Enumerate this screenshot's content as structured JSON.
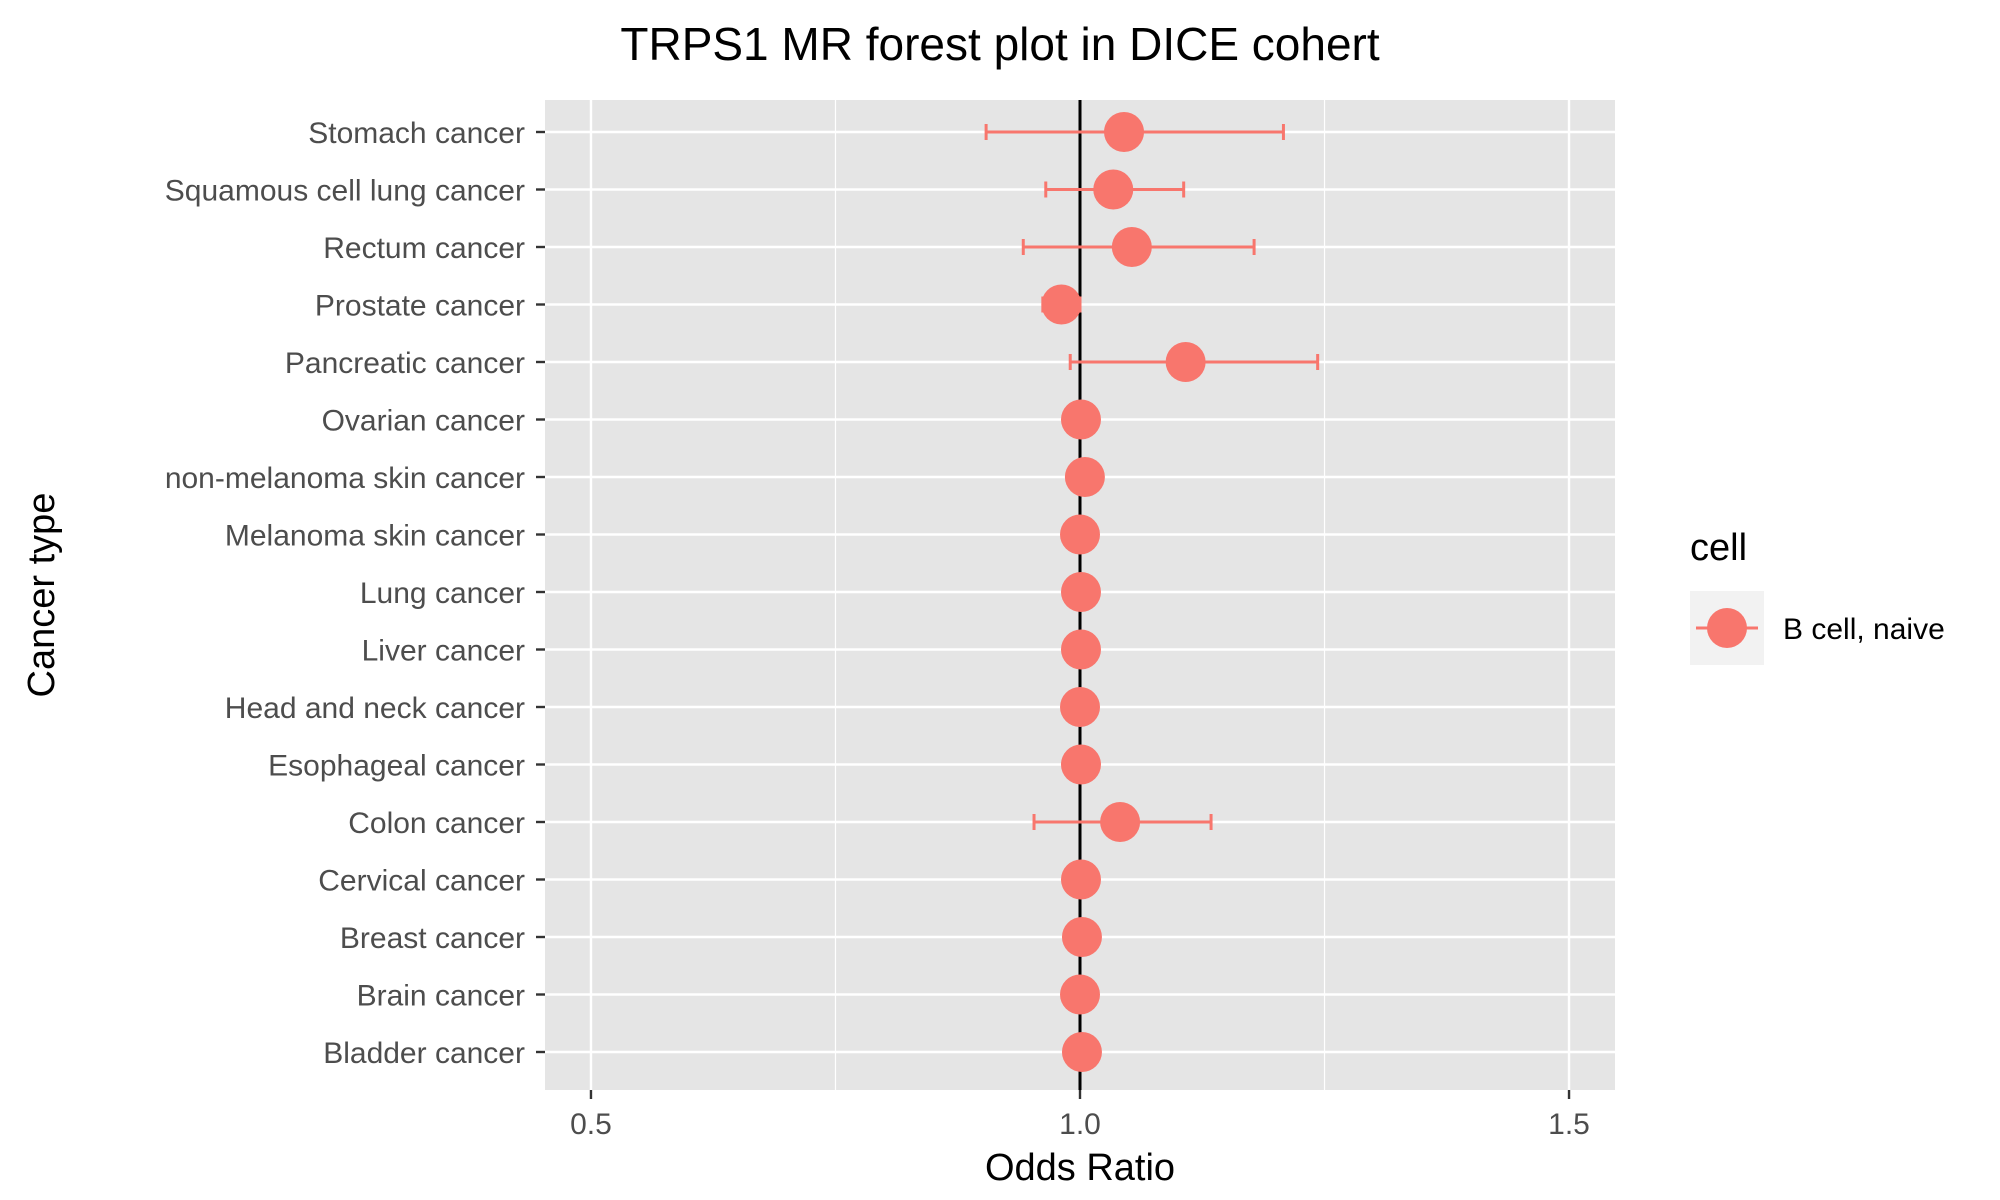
{
  "chart_data": {
    "type": "scatter",
    "title": "TRPS1 MR forest plot in DICE cohert",
    "xlabel": "Odds Ratio",
    "ylabel": "Cancer type",
    "xlim": [
      0.453,
      1.547
    ],
    "xticks": [
      0.5,
      1.0,
      1.5
    ],
    "xtick_labels": [
      "0.5",
      "1.0",
      "1.5"
    ],
    "reference_line": 1.0,
    "grid": true,
    "legend": {
      "title": "cell",
      "position": "right",
      "entries": [
        {
          "label": "B cell, naive",
          "color": "#F8766D"
        }
      ]
    },
    "categories": [
      "Stomach cancer",
      "Squamous cell lung cancer",
      "Rectum cancer",
      "Prostate cancer",
      "Pancreatic cancer",
      "Ovarian cancer",
      "non-melanoma skin cancer",
      "Melanoma skin cancer",
      "Lung cancer",
      "Liver cancer",
      "Head and neck cancer",
      "Esophageal cancer",
      "Colon cancer",
      "Cervical cancer",
      "Breast cancer",
      "Brain cancer",
      "Bladder cancer"
    ],
    "series": [
      {
        "name": "B cell, naive",
        "color": "#F8766D",
        "or": [
          1.045,
          1.034,
          1.053,
          0.981,
          1.108,
          1.001,
          1.005,
          1.0,
          1.001,
          1.001,
          1.0,
          1.001,
          1.041,
          1.001,
          1.002,
          1.0,
          1.002
        ],
        "lower": [
          0.904,
          0.965,
          0.942,
          0.962,
          0.99,
          0.999,
          1.002,
          0.998,
          0.999,
          0.999,
          0.998,
          0.999,
          0.953,
          0.999,
          1.0,
          0.998,
          1.0
        ],
        "upper": [
          1.208,
          1.106,
          1.178,
          1.0,
          1.243,
          1.003,
          1.008,
          1.002,
          1.003,
          1.003,
          1.002,
          1.003,
          1.134,
          1.003,
          1.004,
          1.002,
          1.004
        ]
      }
    ]
  }
}
